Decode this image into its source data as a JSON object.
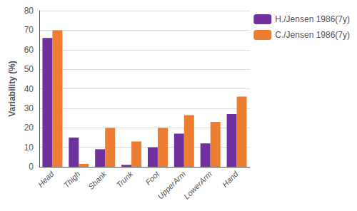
{
  "chart_data": {
    "type": "bar",
    "categories": [
      "Head",
      "Thigh",
      "Shank",
      "Trunk",
      "Foot",
      "UpperArm",
      "LowerArm",
      "Hand"
    ],
    "series": [
      {
        "name": "H./Jensen 1986(7y)",
        "color": "#7030A0",
        "values": [
          66,
          15,
          9,
          1,
          10,
          17,
          12,
          27
        ]
      },
      {
        "name": "C./Jensen 1986(7y)",
        "color": "#ED7D31",
        "values": [
          70,
          1.5,
          20,
          13,
          20,
          26.5,
          23,
          36
        ]
      }
    ],
    "ylabel": "Variability (%)",
    "ylim": [
      0,
      80
    ],
    "yticks": [
      0,
      10,
      20,
      30,
      40,
      50,
      60,
      70,
      80
    ],
    "grid": true,
    "legend": "upper right"
  }
}
